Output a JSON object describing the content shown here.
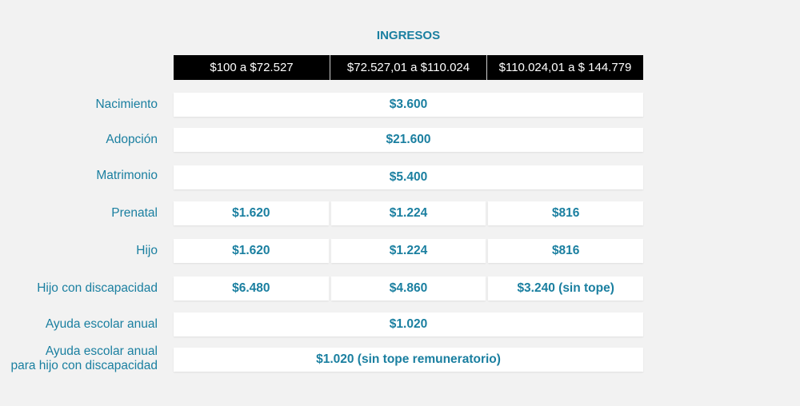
{
  "title": "INGRESOS",
  "headers": [
    "$100 a $72.527",
    "$72.527,01 a $110.024",
    "$110.024,01 a $ 144.779"
  ],
  "rows": [
    {
      "label": "Nacimiento",
      "value": "$3.600"
    },
    {
      "label": "Adopción",
      "value": "$21.600"
    },
    {
      "label": "Matrimonio",
      "value": "$5.400"
    },
    {
      "label": "Prenatal",
      "values": [
        "$1.620",
        "$1.224",
        "$816"
      ]
    },
    {
      "label": "Hijo",
      "values": [
        "$1.620",
        "$1.224",
        "$816"
      ]
    },
    {
      "label": "Hijo con discapacidad",
      "values": [
        "$6.480",
        "$4.860",
        "$3.240 (sin tope)"
      ]
    },
    {
      "label": "Ayuda escolar anual",
      "value": "$1.020"
    },
    {
      "label_line1": "Ayuda escolar anual",
      "label_line2": "para hijo con discapacidad",
      "value": "$1.020 (sin tope remuneratorio)"
    }
  ]
}
